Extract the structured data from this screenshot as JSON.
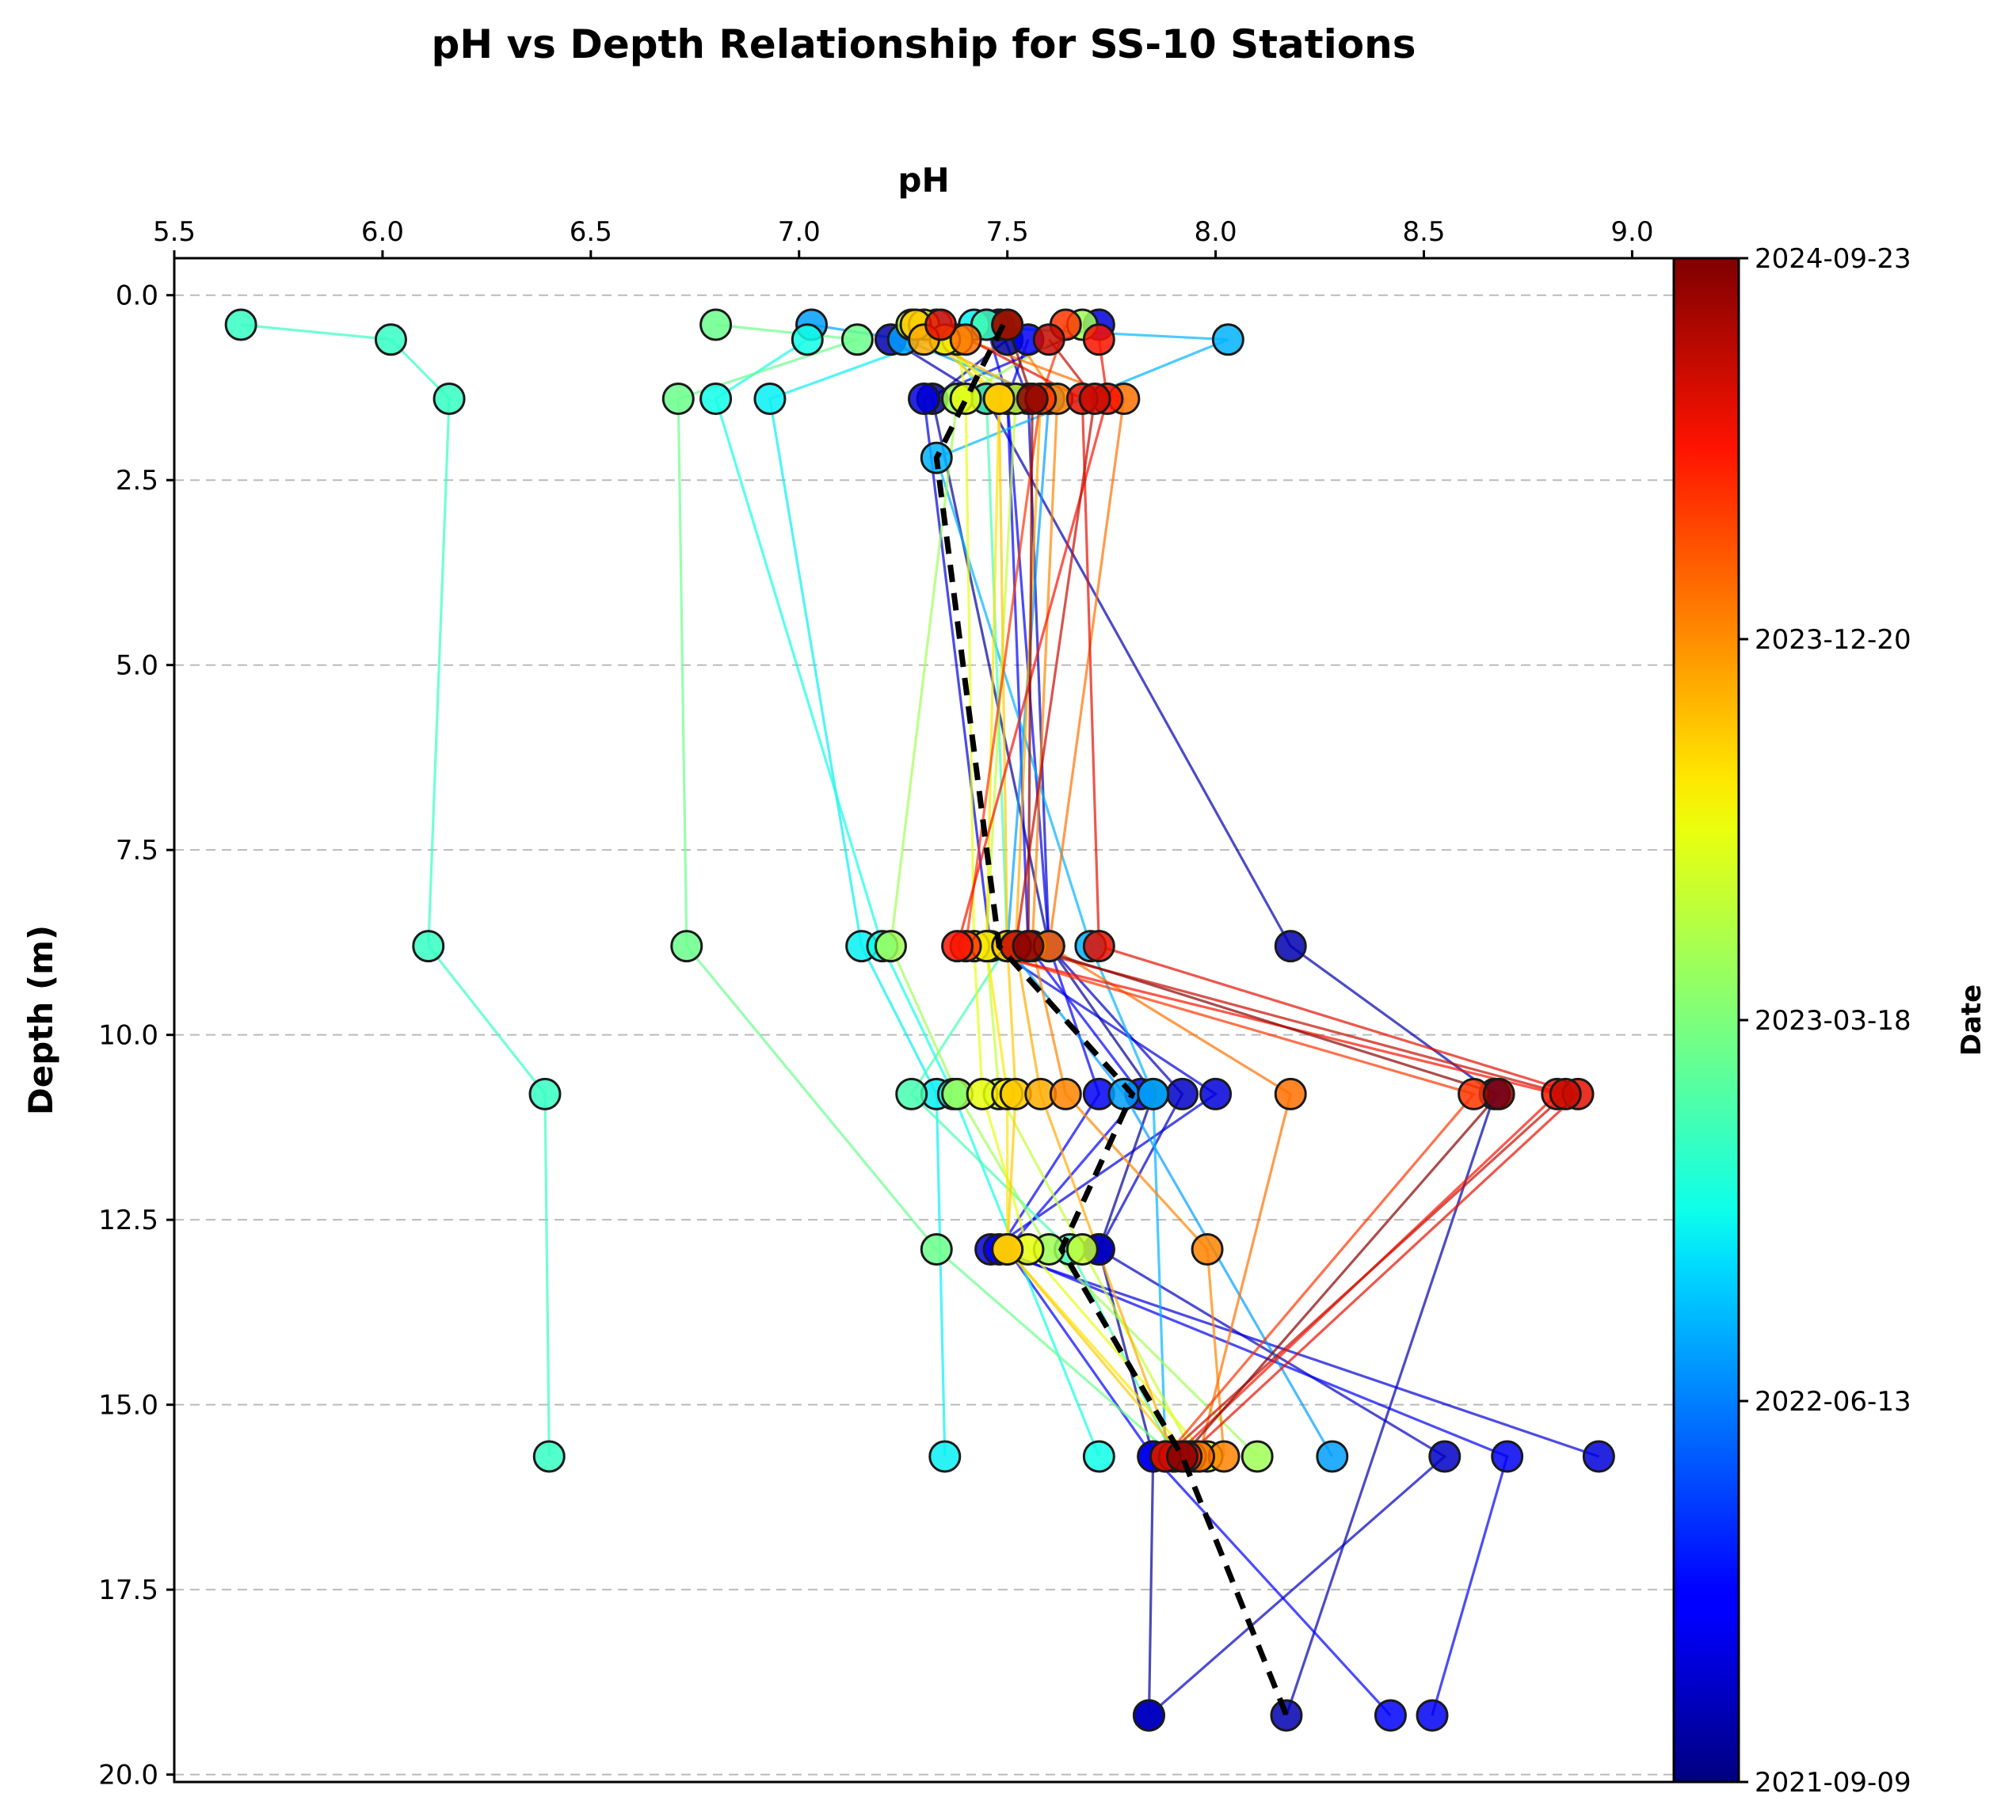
{
  "chart_data": {
    "type": "line",
    "title": "pH vs Depth Relationship for SS-10 Stations",
    "xlabel": "pH",
    "ylabel": "Depth (m)",
    "x_axis_position": "top",
    "y_axis_inverted": true,
    "xlim": [
      5.5,
      9.1
    ],
    "ylim": [
      20.1,
      -0.5
    ],
    "xticks": [
      "5.5",
      "6.0",
      "6.5",
      "7.0",
      "7.5",
      "8.0",
      "8.5",
      "9.0"
    ],
    "yticks": [
      "0.0",
      "2.5",
      "5.0",
      "7.5",
      "10.0",
      "12.5",
      "15.0",
      "17.5",
      "20.0"
    ],
    "grid": "horizontal dashed",
    "colorbar": {
      "label": "Date",
      "colormap": "jet",
      "ticks": [
        "2021-09-09",
        "2022-06-13",
        "2023-03-18",
        "2023-12-20",
        "2024-09-23"
      ]
    },
    "profile_note_color": "#000000",
    "mean_profile": {
      "style": "black dashed",
      "points": [
        [
          7.49,
          0.4
        ],
        [
          7.33,
          2.2
        ],
        [
          7.48,
          8.8
        ],
        [
          7.8,
          10.8
        ],
        [
          7.63,
          12.9
        ],
        [
          7.92,
          15.7
        ],
        [
          8.17,
          19.2
        ]
      ]
    },
    "series": [
      {
        "date_frac": 0.02,
        "points": [
          [
            7.48,
            0.4
          ],
          [
            7.5,
            0.6
          ],
          [
            7.32,
            1.4
          ],
          [
            7.6,
            8.8
          ],
          [
            7.85,
            10.8
          ],
          [
            7.72,
            12.9
          ],
          [
            7.85,
            15.7
          ],
          [
            7.84,
            19.2
          ]
        ]
      },
      {
        "date_frac": 0.04,
        "points": [
          [
            7.22,
            0.6
          ],
          [
            7.45,
            1.4
          ],
          [
            8.18,
            8.8
          ],
          [
            8.67,
            10.8
          ],
          [
            8.17,
            19.2
          ]
        ]
      },
      {
        "date_frac": 0.06,
        "points": [
          [
            7.48,
            0.4
          ],
          [
            7.55,
            1.4
          ],
          [
            7.6,
            8.8
          ],
          [
            7.92,
            10.8
          ],
          [
            7.72,
            12.9
          ],
          [
            8.55,
            15.7
          ],
          [
            7.84,
            19.2
          ]
        ]
      },
      {
        "date_frac": 0.08,
        "points": [
          [
            7.72,
            0.4
          ],
          [
            7.3,
            1.4
          ],
          [
            7.46,
            8.8
          ],
          [
            8.0,
            10.8
          ],
          [
            7.46,
            12.9
          ],
          [
            8.92,
            15.7
          ]
        ]
      },
      {
        "date_frac": 0.1,
        "points": [
          [
            7.55,
            0.6
          ],
          [
            7.5,
            1.4
          ],
          [
            7.6,
            8.8
          ],
          [
            7.72,
            10.8
          ],
          [
            7.48,
            12.9
          ],
          [
            8.7,
            15.7
          ],
          [
            8.52,
            19.2
          ]
        ]
      },
      {
        "date_frac": 0.12,
        "points": [
          [
            7.45,
            0.4
          ],
          [
            7.5,
            1.4
          ],
          [
            7.55,
            8.8
          ],
          [
            7.82,
            10.8
          ],
          [
            7.5,
            12.9
          ],
          [
            7.85,
            15.7
          ],
          [
            8.42,
            19.2
          ]
        ]
      },
      {
        "date_frac": 0.28,
        "points": [
          [
            7.03,
            0.4
          ],
          [
            7.25,
            0.6
          ],
          [
            7.6,
            1.4
          ],
          [
            7.5,
            8.8
          ],
          [
            7.78,
            10.8
          ],
          [
            8.28,
            15.7
          ]
        ]
      },
      {
        "date_frac": 0.3,
        "points": [
          [
            7.33,
            0.4
          ],
          [
            8.03,
            0.6
          ],
          [
            7.33,
            2.2
          ],
          [
            7.7,
            8.8
          ],
          [
            7.85,
            10.8
          ],
          [
            7.88,
            15.7
          ]
        ]
      },
      {
        "date_frac": 0.36,
        "points": [
          [
            7.42,
            0.4
          ],
          [
            6.93,
            1.4
          ],
          [
            7.15,
            8.8
          ],
          [
            7.33,
            10.8
          ],
          [
            7.35,
            15.7
          ]
        ]
      },
      {
        "date_frac": 0.38,
        "points": [
          [
            7.02,
            0.6
          ],
          [
            6.8,
            1.4
          ],
          [
            7.2,
            8.8
          ],
          [
            7.37,
            10.8
          ],
          [
            7.72,
            15.7
          ]
        ]
      },
      {
        "date_frac": 0.42,
        "points": [
          [
            5.66,
            0.4
          ],
          [
            6.02,
            0.6
          ],
          [
            6.16,
            1.4
          ],
          [
            6.11,
            8.8
          ],
          [
            6.39,
            10.8
          ],
          [
            6.4,
            15.7
          ]
        ]
      },
      {
        "date_frac": 0.44,
        "points": [
          [
            7.45,
            0.4
          ],
          [
            7.35,
            0.6
          ],
          [
            7.45,
            1.4
          ],
          [
            7.5,
            8.8
          ],
          [
            7.27,
            10.8
          ],
          [
            7.65,
            12.9
          ],
          [
            7.9,
            15.7
          ]
        ]
      },
      {
        "date_frac": 0.48,
        "points": [
          [
            6.8,
            0.4
          ],
          [
            7.14,
            0.6
          ],
          [
            6.71,
            1.4
          ],
          [
            6.73,
            8.8
          ],
          [
            7.33,
            12.9
          ],
          [
            7.9,
            15.7
          ]
        ]
      },
      {
        "date_frac": 0.54,
        "points": [
          [
            7.68,
            0.4
          ],
          [
            7.38,
            1.4
          ],
          [
            7.22,
            8.8
          ],
          [
            7.38,
            10.8
          ],
          [
            7.6,
            12.9
          ],
          [
            8.1,
            15.7
          ]
        ]
      },
      {
        "date_frac": 0.58,
        "points": [
          [
            7.27,
            0.4
          ],
          [
            7.52,
            1.4
          ],
          [
            7.45,
            8.8
          ],
          [
            7.48,
            10.8
          ],
          [
            7.68,
            12.9
          ],
          [
            7.95,
            15.7
          ]
        ]
      },
      {
        "date_frac": 0.62,
        "points": [
          [
            7.3,
            0.4
          ],
          [
            7.38,
            0.6
          ],
          [
            7.4,
            1.4
          ],
          [
            7.42,
            8.8
          ],
          [
            7.44,
            10.8
          ],
          [
            7.55,
            12.9
          ],
          [
            7.98,
            15.7
          ]
        ]
      },
      {
        "date_frac": 0.66,
        "points": [
          [
            7.35,
            0.6
          ],
          [
            7.48,
            1.4
          ],
          [
            7.45,
            8.8
          ],
          [
            7.5,
            10.8
          ],
          [
            7.5,
            12.9
          ],
          [
            7.94,
            15.7
          ]
        ]
      },
      {
        "date_frac": 0.69,
        "points": [
          [
            7.28,
            0.4
          ],
          [
            7.48,
            1.4
          ],
          [
            7.5,
            8.8
          ],
          [
            7.52,
            10.8
          ],
          [
            7.5,
            12.9
          ],
          [
            7.92,
            15.7
          ]
        ]
      },
      {
        "date_frac": 0.72,
        "points": [
          [
            7.3,
            0.6
          ],
          [
            7.58,
            1.4
          ],
          [
            7.52,
            8.8
          ],
          [
            7.58,
            10.8
          ],
          [
            7.9,
            15.7
          ]
        ]
      },
      {
        "date_frac": 0.76,
        "points": [
          [
            7.5,
            0.4
          ],
          [
            7.62,
            1.4
          ],
          [
            7.56,
            8.8
          ],
          [
            7.64,
            10.8
          ],
          [
            7.98,
            12.9
          ],
          [
            8.02,
            15.7
          ]
        ]
      },
      {
        "date_frac": 0.78,
        "points": [
          [
            7.4,
            0.6
          ],
          [
            7.78,
            1.4
          ],
          [
            7.6,
            8.8
          ],
          [
            8.18,
            10.8
          ],
          [
            7.96,
            15.7
          ]
        ]
      },
      {
        "date_frac": 0.84,
        "points": [
          [
            7.64,
            0.4
          ],
          [
            7.58,
            1.4
          ],
          [
            7.4,
            8.8
          ],
          [
            8.62,
            10.8
          ],
          [
            7.88,
            15.7
          ]
        ]
      },
      {
        "date_frac": 0.88,
        "points": [
          [
            7.72,
            0.6
          ],
          [
            7.74,
            1.4
          ],
          [
            7.38,
            8.8
          ],
          [
            8.82,
            10.8
          ],
          [
            7.9,
            15.7
          ]
        ]
      },
      {
        "date_frac": 0.9,
        "points": [
          [
            7.34,
            0.4
          ],
          [
            7.68,
            1.4
          ],
          [
            7.72,
            8.8
          ],
          [
            8.87,
            10.8
          ],
          [
            7.93,
            15.7
          ]
        ]
      },
      {
        "date_frac": 0.93,
        "points": [
          [
            7.6,
            0.6
          ],
          [
            7.71,
            1.4
          ],
          [
            7.52,
            8.8
          ],
          [
            8.84,
            10.8
          ],
          [
            7.88,
            15.7
          ]
        ]
      },
      {
        "date_frac": 0.99,
        "points": [
          [
            7.5,
            0.4
          ],
          [
            7.56,
            1.4
          ],
          [
            7.55,
            8.8
          ],
          [
            8.68,
            10.8
          ],
          [
            7.92,
            15.7
          ]
        ]
      }
    ]
  }
}
